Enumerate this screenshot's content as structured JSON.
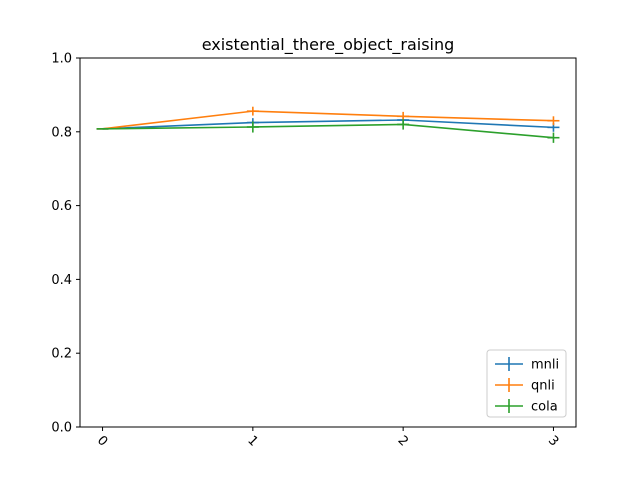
{
  "chart_data": {
    "type": "line",
    "title": "existential_there_object_raising",
    "xlabel": "",
    "ylabel": "",
    "x": [
      0,
      1,
      2,
      3
    ],
    "xticks": [
      "0",
      "1",
      "2",
      "3"
    ],
    "xlim": [
      -0.15,
      3.15
    ],
    "ylim": [
      0.0,
      1.0
    ],
    "yticks": [
      "0.0",
      "0.2",
      "0.4",
      "0.6",
      "0.8",
      "1.0"
    ],
    "grid": false,
    "legend_position": "lower right",
    "series": [
      {
        "name": "mnli",
        "color": "#1f77b4",
        "values": [
          0.808,
          0.825,
          0.832,
          0.812
        ],
        "errors": [
          0.0,
          0.012,
          0.01,
          0.012
        ]
      },
      {
        "name": "qnli",
        "color": "#ff7f0e",
        "values": [
          0.808,
          0.856,
          0.842,
          0.83
        ],
        "errors": [
          0.0,
          0.012,
          0.012,
          0.012
        ]
      },
      {
        "name": "cola",
        "color": "#2ca02c",
        "values": [
          0.808,
          0.813,
          0.82,
          0.784
        ],
        "errors": [
          0.0,
          0.015,
          0.014,
          0.014
        ]
      }
    ]
  }
}
